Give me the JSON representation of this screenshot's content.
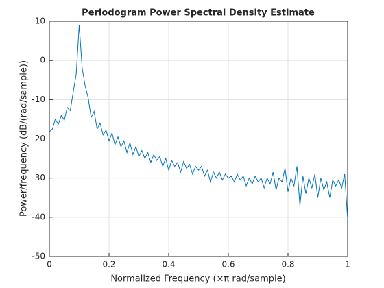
{
  "chart_data": {
    "type": "line",
    "title": "Periodogram Power Spectral Density Estimate",
    "xlabel": "Normalized Frequency  (×π rad/sample)",
    "ylabel": "Power/frequency (dB/(rad/sample))",
    "x": [
      0,
      0.01,
      0.02,
      0.03,
      0.04,
      0.05,
      0.06,
      0.07,
      0.08,
      0.09,
      0.1,
      0.11,
      0.12,
      0.13,
      0.14,
      0.15,
      0.16,
      0.17,
      0.18,
      0.19,
      0.2,
      0.21,
      0.22,
      0.23,
      0.24,
      0.25,
      0.26,
      0.27,
      0.28,
      0.29,
      0.3,
      0.31,
      0.32,
      0.33,
      0.34,
      0.35,
      0.36,
      0.37,
      0.38,
      0.39,
      0.4,
      0.41,
      0.42,
      0.43,
      0.44,
      0.45,
      0.46,
      0.47,
      0.48,
      0.49,
      0.5,
      0.51,
      0.52,
      0.53,
      0.54,
      0.55,
      0.56,
      0.57,
      0.58,
      0.59,
      0.6,
      0.61,
      0.62,
      0.63,
      0.64,
      0.65,
      0.66,
      0.67,
      0.68,
      0.69,
      0.7,
      0.71,
      0.72,
      0.73,
      0.74,
      0.75,
      0.76,
      0.77,
      0.78,
      0.79,
      0.8,
      0.81,
      0.82,
      0.83,
      0.84,
      0.85,
      0.86,
      0.87,
      0.88,
      0.89,
      0.9,
      0.91,
      0.92,
      0.93,
      0.94,
      0.95,
      0.96,
      0.97,
      0.98,
      0.99,
      1
    ],
    "series": [
      {
        "color": "#0072bd",
        "values": [
          -18.2,
          -17.5,
          -15.0,
          -16.3,
          -14.0,
          -15.2,
          -12.0,
          -12.8,
          -8.0,
          -3.5,
          9.0,
          -2.0,
          -6.5,
          -9.5,
          -14.5,
          -13.0,
          -17.5,
          -16.0,
          -19.0,
          -17.8,
          -20.5,
          -18.5,
          -21.5,
          -19.5,
          -22.0,
          -20.5,
          -23.5,
          -21.0,
          -24.0,
          -22.0,
          -24.5,
          -23.0,
          -25.0,
          -23.5,
          -26.0,
          -24.0,
          -25.5,
          -24.5,
          -27.0,
          -25.0,
          -28.0,
          -25.5,
          -27.0,
          -26.0,
          -28.5,
          -25.8,
          -27.5,
          -26.5,
          -29.0,
          -27.0,
          -28.0,
          -27.0,
          -29.5,
          -28.0,
          -31.0,
          -28.5,
          -30.0,
          -28.5,
          -30.5,
          -29.0,
          -30.0,
          -29.5,
          -31.0,
          -29.0,
          -30.5,
          -29.5,
          -32.0,
          -30.0,
          -31.5,
          -29.5,
          -31.0,
          -30.0,
          -32.5,
          -30.0,
          -31.5,
          -28.5,
          -33.0,
          -30.0,
          -31.0,
          -27.5,
          -33.5,
          -30.0,
          -32.0,
          -27.0,
          -37.0,
          -29.5,
          -34.0,
          -30.0,
          -32.5,
          -29.0,
          -35.0,
          -30.0,
          -33.0,
          -31.0,
          -35.0,
          -30.5,
          -32.0,
          -30.5,
          -32.5,
          -29.0,
          -40.5
        ]
      }
    ],
    "xlim": [
      0,
      1
    ],
    "xticks": [
      0,
      0.2,
      0.4,
      0.6,
      0.8,
      1
    ],
    "ylim": [
      -50,
      10
    ],
    "yticks": [
      -50,
      -40,
      -30,
      -20,
      -10,
      0,
      10
    ],
    "grid": true
  }
}
